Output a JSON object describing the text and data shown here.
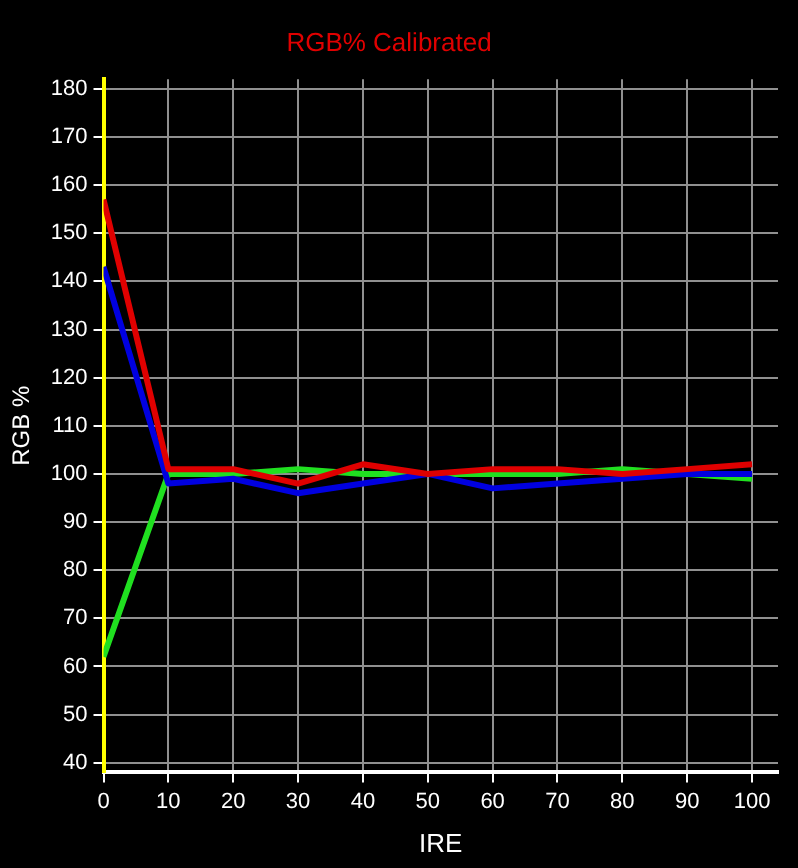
{
  "chart_data": {
    "type": "line",
    "title": "RGB% Calibrated",
    "xlabel": "IRE",
    "ylabel": "RGB %",
    "x": [
      0,
      10,
      20,
      30,
      40,
      50,
      60,
      70,
      80,
      90,
      100
    ],
    "series": [
      {
        "color": "#e00000",
        "values": [
          157,
          101,
          101,
          98,
          102,
          100,
          101,
          101,
          100,
          101,
          102
        ]
      },
      {
        "color": "#0000e0",
        "values": [
          143,
          98,
          99,
          96,
          98,
          100,
          97,
          98,
          99,
          100,
          100
        ]
      },
      {
        "color": "#20e020",
        "values": [
          62,
          100,
          100,
          101,
          100,
          100,
          100,
          100,
          101,
          100,
          99
        ]
      }
    ],
    "xlim": [
      0,
      104
    ],
    "xticks": [
      0,
      10,
      20,
      30,
      40,
      50,
      60,
      70,
      80,
      90,
      100
    ],
    "ylim": [
      38,
      182
    ],
    "yticks": [
      40,
      50,
      60,
      70,
      80,
      90,
      100,
      110,
      120,
      130,
      140,
      150,
      160,
      170,
      180
    ],
    "grid": true,
    "legend": false,
    "marker": "none",
    "line_style": "solid"
  }
}
